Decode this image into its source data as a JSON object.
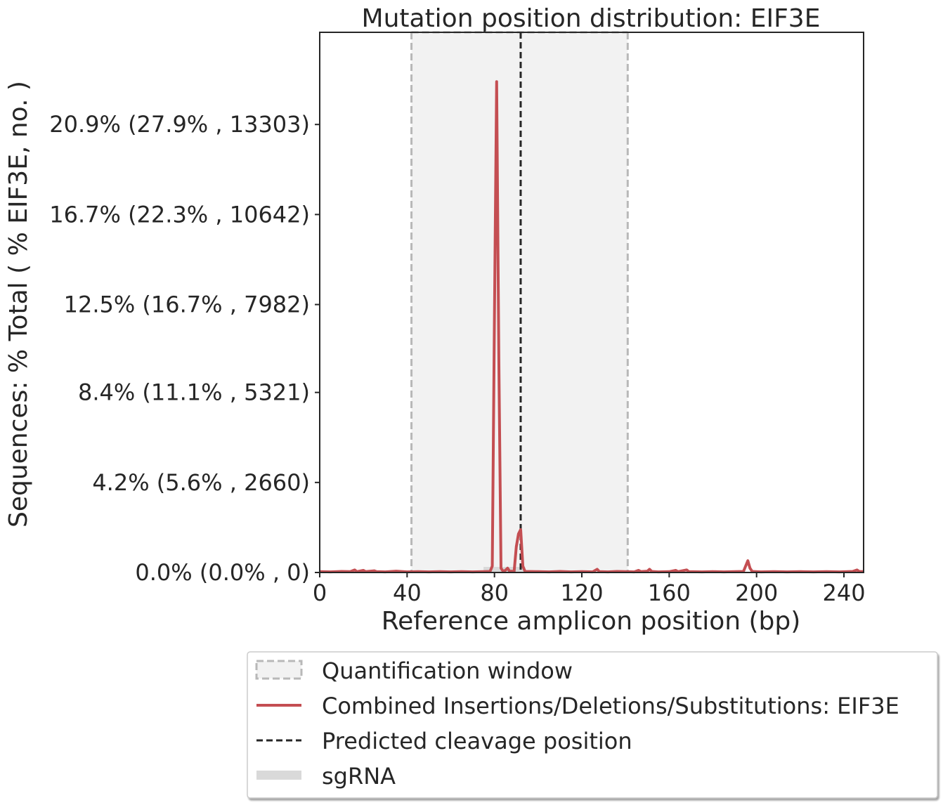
{
  "chart_data": {
    "type": "line",
    "title": "Mutation position distribution: EIF3E",
    "xlabel": "Reference amplicon position (bp)",
    "ylabel": "Sequences: % Total ( % EIF3E, no. )",
    "xlim": [
      0,
      249
    ],
    "ylim": [
      0,
      25.2
    ],
    "x_ticks": [
      0,
      40,
      80,
      120,
      160,
      200,
      240
    ],
    "y_ticks": [
      {
        "value": 0.0,
        "label": "0.0% (0.0% , 0)"
      },
      {
        "value": 4.2,
        "label": "4.2% (5.6% , 2660)"
      },
      {
        "value": 8.4,
        "label": "8.4% (11.1% , 5321)"
      },
      {
        "value": 12.5,
        "label": "12.5% (16.7% , 7982)"
      },
      {
        "value": 16.7,
        "label": "16.7% (22.3% , 10642)"
      },
      {
        "value": 20.9,
        "label": "20.9% (27.9% , 13303)"
      }
    ],
    "quantification_window": [
      42,
      141
    ],
    "sgrna_range": [
      75,
      94
    ],
    "cleavage_position": 92,
    "grid": false,
    "legend_placement": "bottom-center (below plot)",
    "series": [
      {
        "name": "Combined Insertions/Deletions/Substitutions: EIF3E",
        "color": "#c44e52",
        "points": [
          [
            0,
            0.04
          ],
          [
            5,
            0.03
          ],
          [
            10,
            0.05
          ],
          [
            14,
            0.04
          ],
          [
            16,
            0.12
          ],
          [
            17,
            0.04
          ],
          [
            20,
            0.1
          ],
          [
            21,
            0.04
          ],
          [
            25,
            0.08
          ],
          [
            26,
            0.04
          ],
          [
            30,
            0.03
          ],
          [
            35,
            0.06
          ],
          [
            40,
            0.03
          ],
          [
            45,
            0.04
          ],
          [
            50,
            0.03
          ],
          [
            55,
            0.04
          ],
          [
            60,
            0.03
          ],
          [
            65,
            0.04
          ],
          [
            70,
            0.03
          ],
          [
            75,
            0.04
          ],
          [
            78,
            0.05
          ],
          [
            79,
            0.3
          ],
          [
            80,
            12.0
          ],
          [
            81,
            22.9
          ],
          [
            82,
            10.0
          ],
          [
            83,
            0.2
          ],
          [
            84,
            0.05
          ],
          [
            85,
            0.1
          ],
          [
            86,
            0.2
          ],
          [
            87,
            0.05
          ],
          [
            88,
            0.06
          ],
          [
            89,
            0.04
          ],
          [
            90,
            1.2
          ],
          [
            91,
            1.8
          ],
          [
            92,
            2.0
          ],
          [
            93,
            0.3
          ],
          [
            94,
            0.05
          ],
          [
            100,
            0.04
          ],
          [
            105,
            0.03
          ],
          [
            110,
            0.05
          ],
          [
            115,
            0.03
          ],
          [
            120,
            0.04
          ],
          [
            125,
            0.03
          ],
          [
            127,
            0.15
          ],
          [
            128,
            0.04
          ],
          [
            132,
            0.03
          ],
          [
            136,
            0.05
          ],
          [
            140,
            0.04
          ],
          [
            144,
            0.03
          ],
          [
            146,
            0.1
          ],
          [
            147,
            0.04
          ],
          [
            150,
            0.06
          ],
          [
            151,
            0.15
          ],
          [
            152,
            0.05
          ],
          [
            155,
            0.03
          ],
          [
            160,
            0.04
          ],
          [
            163,
            0.1
          ],
          [
            164,
            0.04
          ],
          [
            168,
            0.12
          ],
          [
            169,
            0.04
          ],
          [
            175,
            0.03
          ],
          [
            180,
            0.04
          ],
          [
            185,
            0.03
          ],
          [
            190,
            0.04
          ],
          [
            194,
            0.05
          ],
          [
            195,
            0.3
          ],
          [
            196,
            0.55
          ],
          [
            197,
            0.2
          ],
          [
            198,
            0.05
          ],
          [
            202,
            0.03
          ],
          [
            208,
            0.04
          ],
          [
            214,
            0.03
          ],
          [
            220,
            0.04
          ],
          [
            226,
            0.03
          ],
          [
            232,
            0.04
          ],
          [
            238,
            0.03
          ],
          [
            244,
            0.05
          ],
          [
            246,
            0.12
          ],
          [
            247,
            0.05
          ],
          [
            249,
            0.04
          ]
        ]
      }
    ],
    "legend": [
      {
        "key": "quant",
        "label": "Quantification window"
      },
      {
        "key": "combined",
        "label": "Combined Insertions/Deletions/Substitutions: EIF3E"
      },
      {
        "key": "cleavage",
        "label": "Predicted cleavage position"
      },
      {
        "key": "sgrna",
        "label": "sgRNA"
      }
    ],
    "colors": {
      "line": "#c44e52",
      "window_fill": "#f2f2f2",
      "window_edge": "#b8b8b8",
      "sgrna": "#d9d9d9",
      "cleavage": "#262626",
      "text": "#262626"
    }
  }
}
